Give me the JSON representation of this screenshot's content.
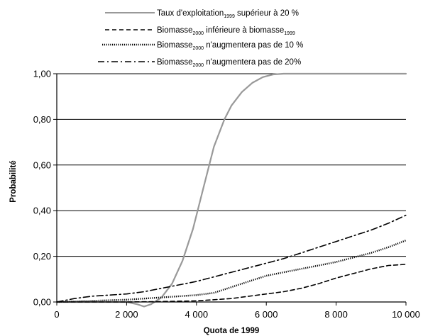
{
  "chart_data": {
    "type": "line",
    "title": "",
    "xlabel": "Quota de 1999",
    "ylabel": "Probabilité",
    "xlim": [
      0,
      10000
    ],
    "ylim": [
      0,
      1
    ],
    "x_ticks": [
      0,
      2000,
      4000,
      6000,
      8000,
      10000
    ],
    "x_tick_labels": [
      "0",
      "2 000",
      "4 000",
      "6 000",
      "8 000",
      "10 000"
    ],
    "y_ticks": [
      0,
      0.2,
      0.4,
      0.6,
      0.8,
      1.0
    ],
    "y_tick_labels": [
      "0,00",
      "0,20",
      "0,40",
      "0,60",
      "0,80",
      "1,00"
    ],
    "grid": "horizontal",
    "legend_position": "top",
    "series": [
      {
        "legend": {
          "pre": "Taux d'exploitation",
          "sub": "1999",
          "post": " supérieur à 20 %"
        },
        "color": "#999999",
        "dash": "solid",
        "x": [
          0,
          500,
          1000,
          1500,
          2000,
          2300,
          2500,
          2700,
          3000,
          3300,
          3600,
          3900,
          4200,
          4500,
          4800,
          5000,
          5300,
          5600,
          5900,
          6200,
          6500,
          7000,
          8000,
          9000,
          10000
        ],
        "y": [
          0.0,
          0.0,
          0.0,
          0.0,
          0.0,
          -0.01,
          -0.02,
          -0.01,
          0.02,
          0.08,
          0.18,
          0.32,
          0.5,
          0.68,
          0.8,
          0.86,
          0.92,
          0.96,
          0.985,
          0.997,
          1.0,
          1.0,
          1.0,
          1.0,
          1.0
        ]
      },
      {
        "legend": {
          "pre": "Biomasse",
          "sub": "2000",
          "post": " inférieure à biomasse",
          "sub2": "1999"
        },
        "color": "#000000",
        "dash": "dashed",
        "x": [
          0,
          1000,
          2000,
          3000,
          4000,
          5000,
          5500,
          6000,
          6500,
          7000,
          7500,
          8000,
          8500,
          9000,
          9500,
          10000
        ],
        "y": [
          0.0,
          0.0,
          0.0,
          0.002,
          0.005,
          0.015,
          0.025,
          0.035,
          0.045,
          0.06,
          0.08,
          0.105,
          0.125,
          0.145,
          0.16,
          0.165
        ]
      },
      {
        "legend": {
          "pre": "Biomasse",
          "sub": "2000",
          "post": " n'augmentera pas de 10 %"
        },
        "color": "#000000",
        "dash": "dotted",
        "x": [
          0,
          1000,
          2000,
          3000,
          4000,
          4500,
          5000,
          5500,
          6000,
          6500,
          7000,
          7500,
          8000,
          8500,
          9000,
          9500,
          10000
        ],
        "y": [
          0.0,
          0.005,
          0.01,
          0.02,
          0.03,
          0.04,
          0.065,
          0.09,
          0.115,
          0.13,
          0.145,
          0.16,
          0.175,
          0.195,
          0.215,
          0.24,
          0.27
        ]
      },
      {
        "legend": {
          "pre": "Biomasse",
          "sub": "2000",
          "post": " n'augmentera pas de 20%"
        },
        "color": "#000000",
        "dash": "dashdot",
        "x": [
          0,
          500,
          1000,
          1500,
          2000,
          2500,
          3000,
          3500,
          4000,
          4500,
          5000,
          5500,
          6000,
          6500,
          7000,
          7500,
          8000,
          8500,
          9000,
          9500,
          10000
        ],
        "y": [
          0.0,
          0.015,
          0.025,
          0.03,
          0.035,
          0.045,
          0.06,
          0.075,
          0.09,
          0.11,
          0.13,
          0.15,
          0.17,
          0.19,
          0.215,
          0.24,
          0.265,
          0.29,
          0.315,
          0.345,
          0.38
        ]
      }
    ]
  }
}
